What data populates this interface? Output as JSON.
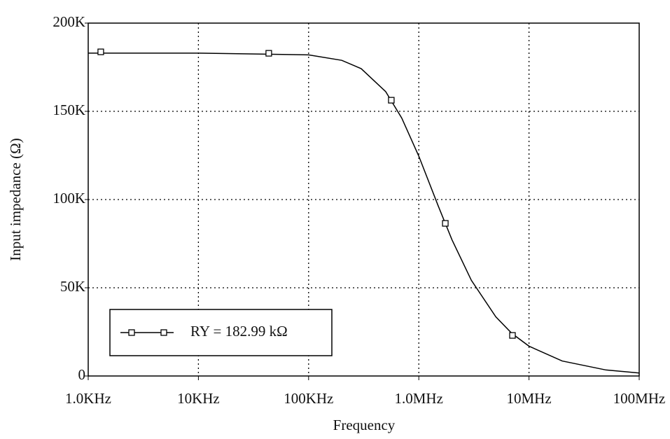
{
  "chart_data": {
    "type": "line",
    "x_label": "Frequency",
    "y_label": "Input impedance (Ω)",
    "xscale": "log",
    "grid": true,
    "xlim": [
      1000,
      100000000
    ],
    "xticks": [
      {
        "value": 1000,
        "label": "1.0KHz"
      },
      {
        "value": 10000,
        "label": "10KHz"
      },
      {
        "value": 100000,
        "label": "100KHz"
      },
      {
        "value": 1000000,
        "label": "1.0MHz"
      },
      {
        "value": 10000000,
        "label": "10MHz"
      },
      {
        "value": 100000000,
        "label": "100MHz"
      }
    ],
    "ylim": [
      0,
      200000
    ],
    "yticks": [
      0,
      {
        "value": 50000,
        "label": "50K"
      },
      {
        "value": 100000,
        "label": "100K"
      },
      {
        "value": 150000,
        "label": "150K"
      },
      {
        "value": 200000,
        "label": "200K"
      }
    ],
    "series": [
      {
        "name": "RY = 182.99 kΩ",
        "color": "#000000",
        "x": [
          1000,
          10000,
          100000,
          200000,
          300000,
          500000,
          700000,
          1000000,
          1500000,
          2000000,
          3000000,
          5000000,
          7000000,
          10000000,
          20000000,
          50000000,
          100000000
        ],
        "values": [
          183000,
          183000,
          182000,
          178900,
          174200,
          161200,
          146200,
          124600,
          96400,
          77200,
          54200,
          33500,
          24100,
          16900,
          8500,
          3400,
          1700
        ],
        "marker_x": [
          1300,
          43500,
          563000,
          1740000,
          7080000
        ],
        "marker_values": [
          183700,
          182900,
          156300,
          86500,
          23000
        ]
      }
    ]
  }
}
